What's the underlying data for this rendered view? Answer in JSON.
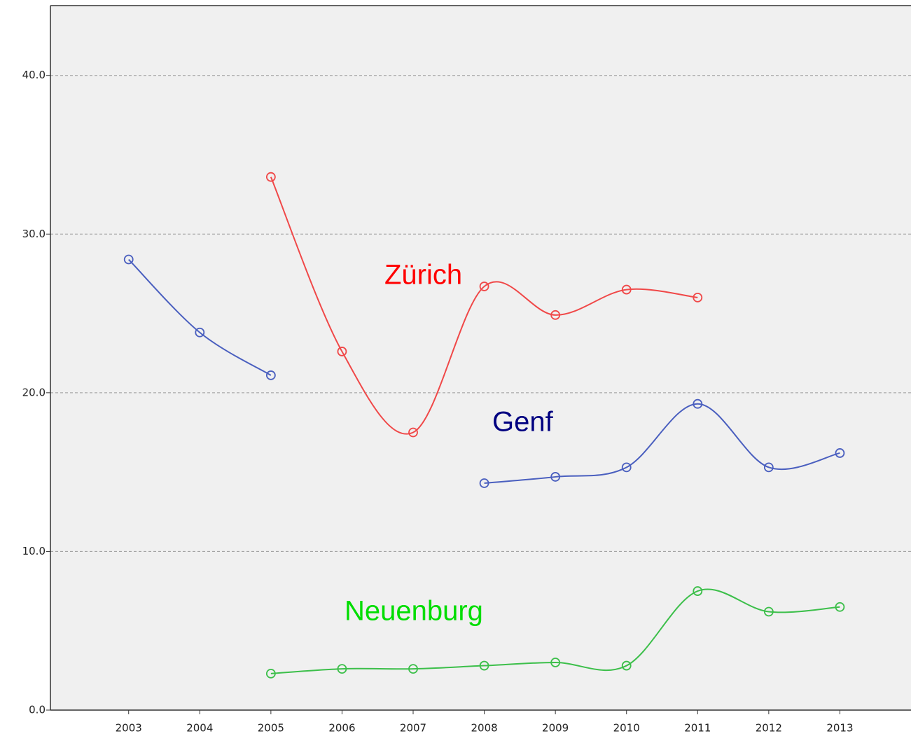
{
  "chart_data": {
    "type": "line",
    "x": [
      2003,
      2004,
      2005,
      2006,
      2007,
      2008,
      2009,
      2010,
      2011,
      2012,
      2013
    ],
    "xlim": [
      2001.9,
      2014
    ],
    "xticks": [
      2003,
      2004,
      2005,
      2006,
      2007,
      2008,
      2009,
      2010,
      2011,
      2012,
      2013
    ],
    "ylim": [
      0,
      44.4
    ],
    "yticks": [
      {
        "value": 0,
        "label": "0.0"
      },
      {
        "value": 10,
        "label": "10.0"
      },
      {
        "value": 20,
        "label": "20.0"
      },
      {
        "value": 30,
        "label": "30.0"
      },
      {
        "value": 40,
        "label": "40.0"
      }
    ],
    "grid": true,
    "smooth": true,
    "series": [
      {
        "name": "Zürich",
        "color": "#f04848",
        "label_color": "#ff0000",
        "values": [
          null,
          null,
          33.6,
          22.6,
          17.5,
          26.7,
          24.9,
          26.5,
          26.0,
          null,
          null
        ]
      },
      {
        "name": "Genf",
        "color": "#4a5fbf",
        "label_color": "#000080",
        "values": [
          28.4,
          23.8,
          21.1,
          null,
          null,
          14.3,
          14.7,
          15.3,
          19.3,
          15.3,
          16.2
        ]
      },
      {
        "name": "Neuenburg",
        "color": "#3cbf4a",
        "label_color": "#00dd00",
        "values": [
          null,
          null,
          2.3,
          2.6,
          2.6,
          2.8,
          3.0,
          2.8,
          7.5,
          6.2,
          6.5
        ]
      }
    ]
  }
}
